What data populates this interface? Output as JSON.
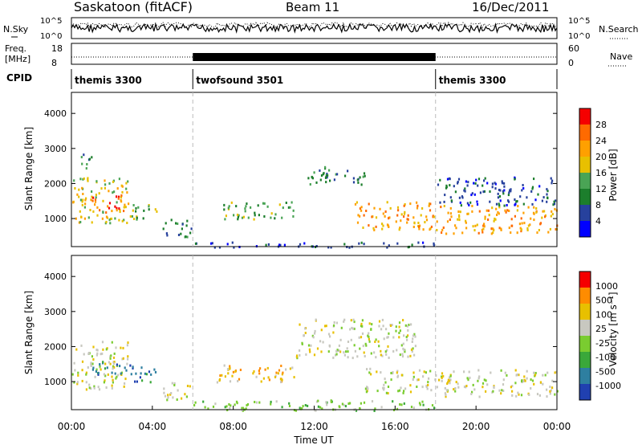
{
  "header": {
    "station": "Saskatoon (fitACF)",
    "beam": "Beam 11",
    "date": "16/Dec/2011"
  },
  "noise_panel": {
    "left_label": "N.Sky",
    "right_label": "N.Search",
    "left_ticks": [
      "10^5",
      "10^0"
    ],
    "right_ticks": [
      "10^5",
      "10^0"
    ]
  },
  "freq_panel": {
    "left_label_line1": "Freq.",
    "left_label_line2": "[MHz]",
    "left_ticks": [
      "18",
      "8"
    ],
    "right_ticks": [
      "60",
      "0"
    ],
    "right_label": "Nave"
  },
  "cpid_panel": {
    "label": "CPID",
    "segments": [
      {
        "name": "themis 3300",
        "start_h": 0,
        "end_h": 6
      },
      {
        "name": "twofsound 3501",
        "start_h": 6,
        "end_h": 18
      },
      {
        "name": "themis 3300",
        "start_h": 18,
        "end_h": 24
      }
    ]
  },
  "chart_data": [
    {
      "type": "heatmap",
      "panel": "power",
      "ylabel": "Slant Range [km]",
      "ylim": [
        200,
        4600
      ],
      "yticks": [
        "1000",
        "2000",
        "3000",
        "4000"
      ],
      "xlim_hours": [
        0,
        24
      ],
      "colorbar_label": "Power [dB]",
      "colorbar_ticks": [
        "4",
        "8",
        "12",
        "16",
        "20",
        "24",
        "28"
      ],
      "colors": [
        "#0000ff",
        "#27419d",
        "#1c7e2c",
        "#4aa455",
        "#e8c000",
        "#ffa000",
        "#ff6a00",
        "#f50000"
      ],
      "scatter_regions": [
        {
          "t_start": 0.0,
          "t_end": 2.8,
          "range_start": 900,
          "range_end": 2200,
          "level": 4
        },
        {
          "t_start": 1.0,
          "t_end": 2.6,
          "range_start": 1200,
          "range_end": 1700,
          "level": 6
        },
        {
          "t_start": 0.4,
          "t_end": 1.0,
          "range_start": 2400,
          "range_end": 2900,
          "level": 2
        },
        {
          "t_start": 2.8,
          "t_end": 4.2,
          "range_start": 1000,
          "range_end": 1500,
          "level": 3
        },
        {
          "t_start": 4.5,
          "t_end": 6.0,
          "range_start": 500,
          "range_end": 1000,
          "level": 2
        },
        {
          "t_start": 7.5,
          "t_end": 11.0,
          "range_start": 1000,
          "range_end": 1500,
          "level": 3
        },
        {
          "t_start": 11.5,
          "t_end": 14.5,
          "range_start": 2000,
          "range_end": 2500,
          "level": 2
        },
        {
          "t_start": 14.0,
          "t_end": 18.0,
          "range_start": 700,
          "range_end": 1500,
          "level": 5
        },
        {
          "t_start": 18.0,
          "t_end": 24.0,
          "range_start": 600,
          "range_end": 1400,
          "level": 5
        },
        {
          "t_start": 18.0,
          "t_end": 24.0,
          "range_start": 1400,
          "range_end": 2200,
          "level": 1
        },
        {
          "t_start": 6.0,
          "t_end": 18.0,
          "range_start": 200,
          "range_end": 350,
          "level": 1
        }
      ]
    },
    {
      "type": "heatmap",
      "panel": "velocity",
      "ylabel": "Slant Range [km]",
      "ylim": [
        200,
        4600
      ],
      "yticks": [
        "1000",
        "2000",
        "3000",
        "4000"
      ],
      "xlim_hours": [
        0,
        24
      ],
      "colorbar_label": "Velocity [m s⁻¹]",
      "colorbar_ticks": [
        "1000",
        "500",
        "100",
        "25",
        "-25",
        "-100",
        "-500",
        "-1000"
      ],
      "colors": [
        "#2040b0",
        "#2e7fa0",
        "#3aa83a",
        "#7acc30",
        "#c8c8c0",
        "#e8c000",
        "#ff8c00",
        "#f50000"
      ],
      "scatter_regions": [
        {
          "t_start": 0.0,
          "t_end": 2.8,
          "range_start": 800,
          "range_end": 2200,
          "level": 4
        },
        {
          "t_start": 1.0,
          "t_end": 2.8,
          "range_start": 1200,
          "range_end": 1600,
          "level": 1
        },
        {
          "t_start": 2.8,
          "t_end": 4.2,
          "range_start": 1000,
          "range_end": 1500,
          "level": 1
        },
        {
          "t_start": 4.5,
          "t_end": 6.0,
          "range_start": 500,
          "range_end": 1000,
          "level": 4
        },
        {
          "t_start": 7.0,
          "t_end": 11.0,
          "range_start": 1000,
          "range_end": 1500,
          "level": 5
        },
        {
          "t_start": 11.0,
          "t_end": 17.0,
          "range_start": 1700,
          "range_end": 2800,
          "level": 4
        },
        {
          "t_start": 14.5,
          "t_end": 18.0,
          "range_start": 700,
          "range_end": 1400,
          "level": 4
        },
        {
          "t_start": 18.0,
          "t_end": 24.0,
          "range_start": 600,
          "range_end": 1400,
          "level": 4
        },
        {
          "t_start": 6.0,
          "t_end": 18.0,
          "range_start": 200,
          "range_end": 500,
          "level": 3
        }
      ]
    }
  ],
  "x_axis": {
    "ticks": [
      "00:00",
      "04:00",
      "08:00",
      "12:00",
      "16:00",
      "20:00",
      "00:00"
    ],
    "label": "Time UT"
  }
}
